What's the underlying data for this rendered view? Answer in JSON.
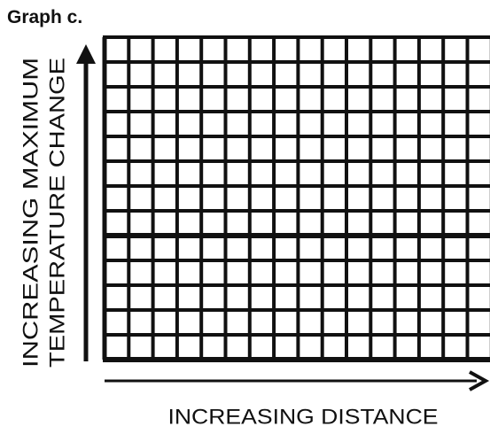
{
  "title": "Graph c.",
  "y_axis": {
    "lines": [
      "INCREASING MAXIMUM",
      "TEMPERATURE CHANGE"
    ]
  },
  "x_axis": {
    "label": "INCREASING DISTANCE"
  }
}
